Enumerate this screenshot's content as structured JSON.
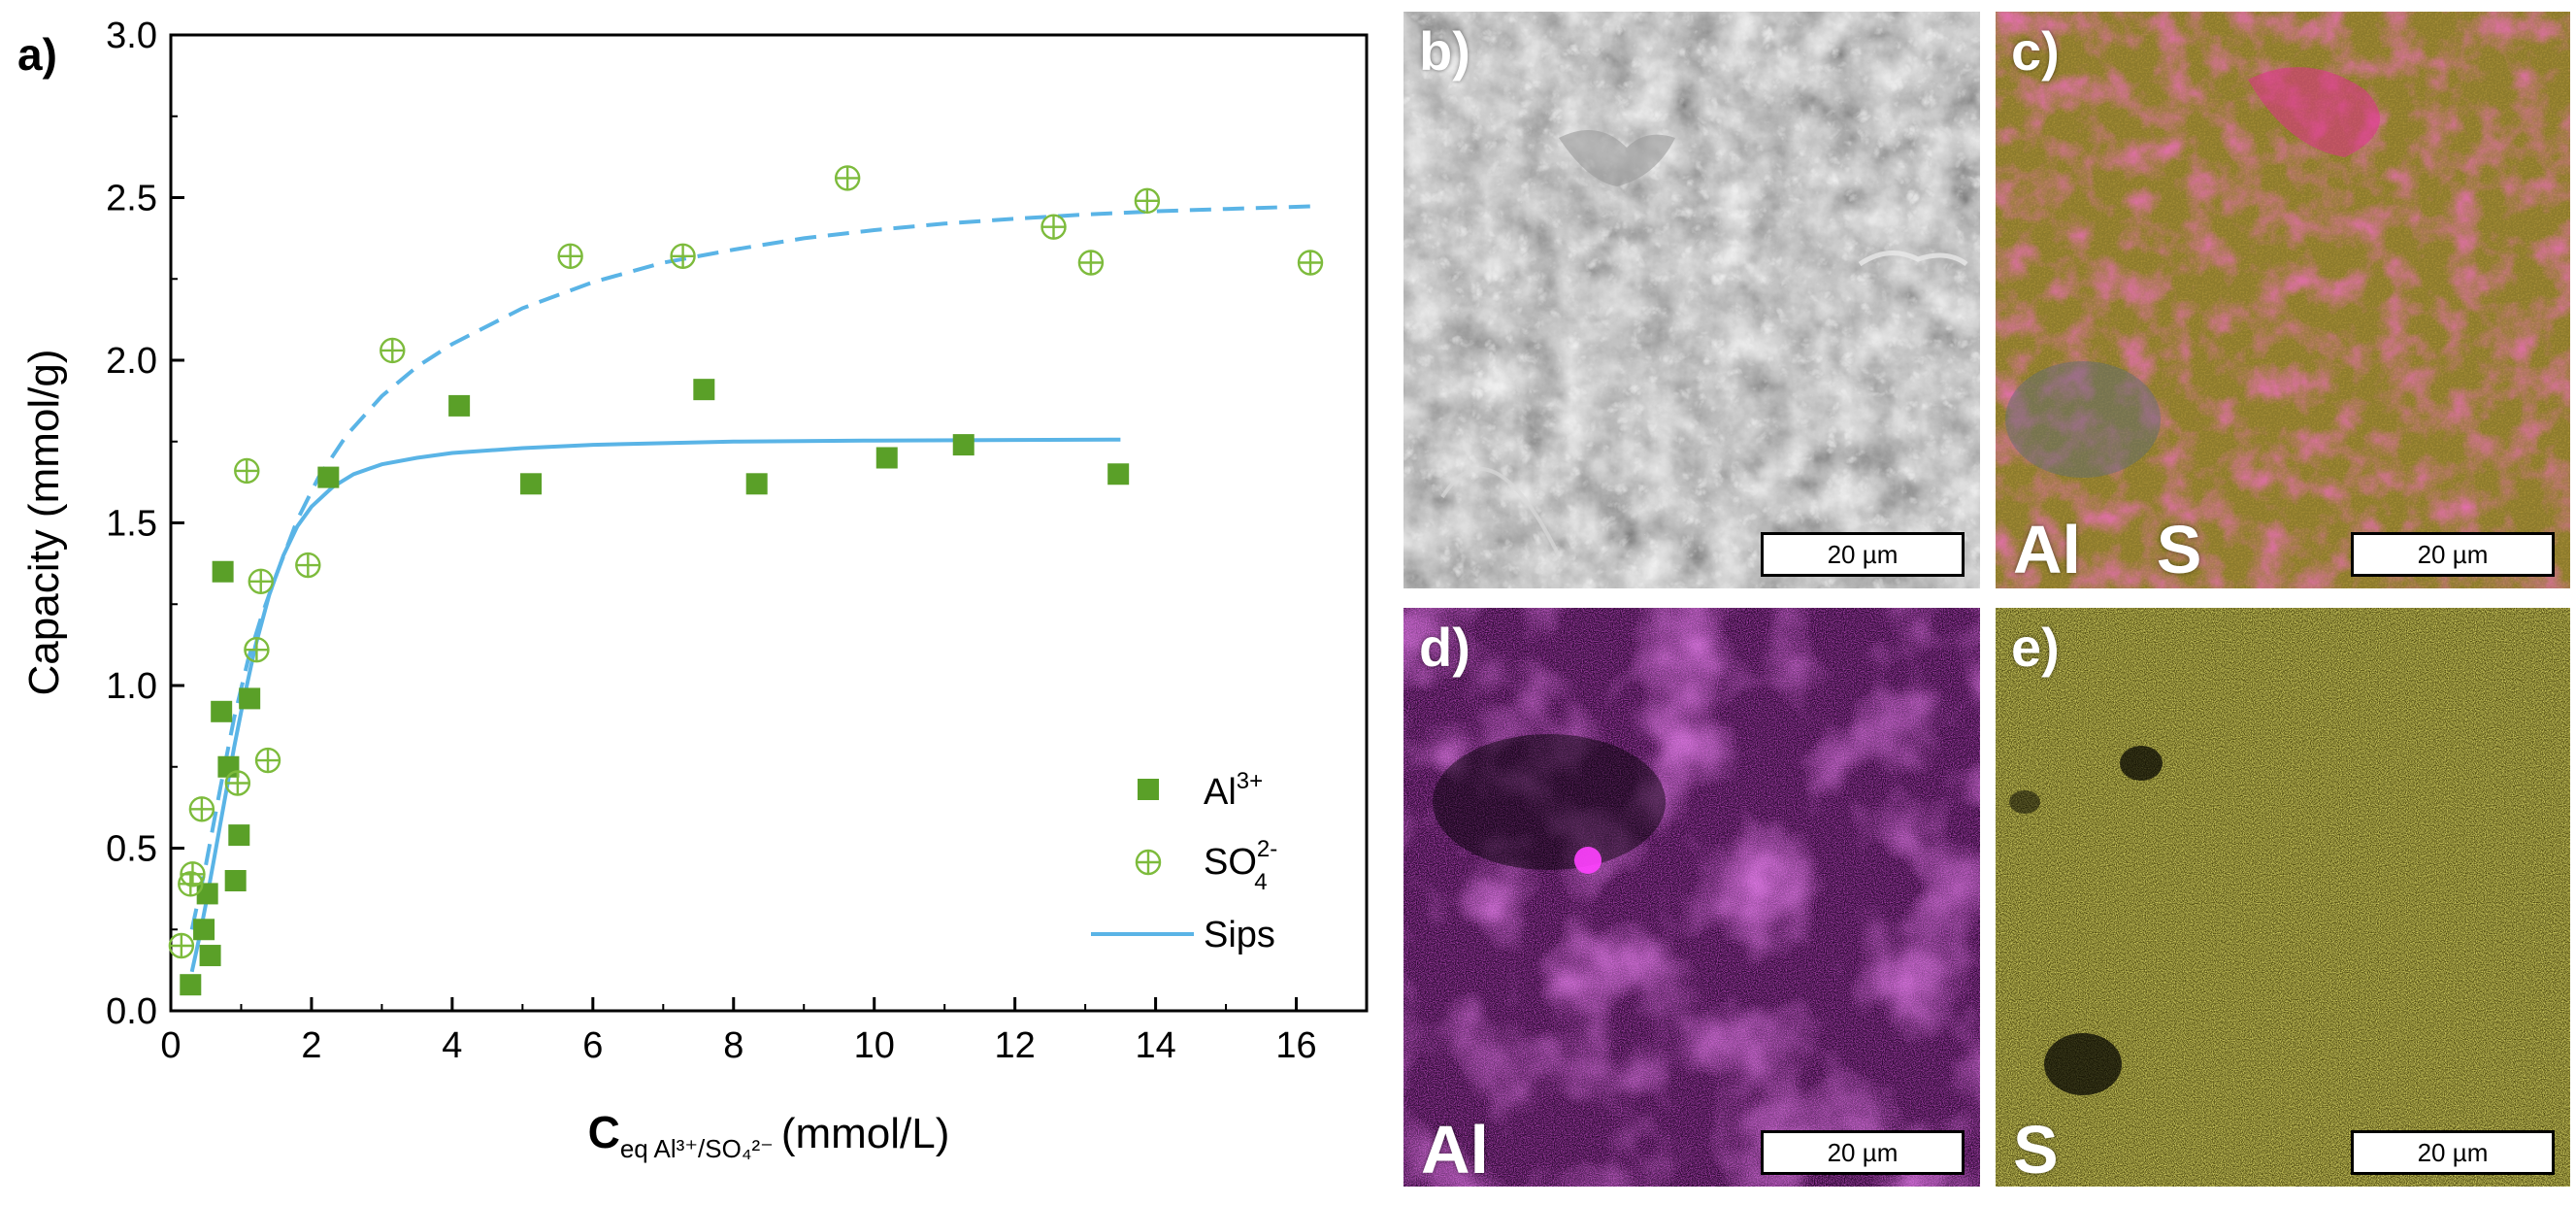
{
  "chart_data": {
    "type": "scatter",
    "panel_label": "a)",
    "xlabel_main": "C",
    "xlabel_sub": "eq Al³⁺/SO₄²⁻",
    "xlabel_unit": "(mmol/L)",
    "ylabel": "Capacity (mmol/g)",
    "xlim": [
      0,
      17
    ],
    "ylim": [
      0,
      3.0
    ],
    "xticks": [
      0,
      2,
      4,
      6,
      8,
      10,
      12,
      14,
      16
    ],
    "yticks": [
      0.0,
      0.5,
      1.0,
      1.5,
      2.0,
      2.5,
      3.0
    ],
    "ytick_labels": [
      "0.0",
      "0.5",
      "1.0",
      "1.5",
      "2.0",
      "2.5",
      "3.0"
    ],
    "legend_position": "bottom-right",
    "series": [
      {
        "name": "Al3+",
        "legend_base": "Al",
        "legend_sup": "3+",
        "marker": "filled-square",
        "color": "#5aa028",
        "x": [
          0.28,
          0.47,
          0.52,
          0.56,
          0.72,
          0.74,
          0.82,
          0.92,
          0.97,
          1.12,
          2.24,
          4.1,
          5.12,
          7.58,
          8.33,
          10.18,
          11.27,
          13.47
        ],
        "y": [
          0.08,
          0.25,
          0.36,
          0.17,
          0.92,
          1.35,
          0.75,
          0.4,
          0.54,
          0.96,
          1.64,
          1.86,
          1.62,
          1.91,
          1.62,
          1.7,
          1.74,
          1.65
        ]
      },
      {
        "name": "SO42-",
        "legend_base": "SO",
        "legend_sup": "2-",
        "legend_sub": "4",
        "marker": "open-circle-cross",
        "color": "#7dbb3c",
        "x": [
          0.15,
          0.28,
          0.31,
          0.44,
          0.95,
          1.08,
          1.22,
          1.28,
          1.38,
          1.95,
          3.15,
          5.68,
          7.28,
          9.62,
          12.55,
          13.08,
          13.88,
          16.2
        ],
        "y": [
          0.2,
          0.39,
          0.42,
          0.62,
          0.7,
          1.66,
          1.11,
          1.32,
          0.77,
          1.37,
          2.03,
          2.32,
          2.32,
          2.56,
          2.41,
          2.3,
          2.49,
          2.3
        ]
      }
    ],
    "fits": [
      {
        "name": "Sips",
        "for": "Al3+",
        "style": "solid",
        "color": "#5ab4e6",
        "x": [
          0.3,
          0.4,
          0.5,
          0.6,
          0.7,
          0.8,
          0.9,
          1.0,
          1.2,
          1.4,
          1.6,
          1.8,
          2.0,
          2.3,
          2.6,
          3.0,
          3.5,
          4.0,
          5.0,
          6.0,
          8.0,
          10.0,
          12.0,
          13.5
        ],
        "y": [
          0.12,
          0.22,
          0.33,
          0.45,
          0.57,
          0.69,
          0.81,
          0.92,
          1.12,
          1.28,
          1.4,
          1.49,
          1.55,
          1.61,
          1.65,
          1.68,
          1.7,
          1.715,
          1.73,
          1.74,
          1.75,
          1.753,
          1.755,
          1.756
        ]
      },
      {
        "name": "Sips",
        "for": "SO42-",
        "style": "dashed",
        "color": "#5ab4e6",
        "x": [
          0.3,
          0.5,
          0.7,
          0.9,
          1.1,
          1.3,
          1.5,
          1.8,
          2.1,
          2.5,
          3.0,
          3.5,
          4.0,
          5.0,
          6.0,
          7.0,
          8.0,
          9.0,
          10.0,
          11.0,
          12.0,
          13.0,
          14.0,
          15.0,
          16.2
        ],
        "y": [
          0.25,
          0.45,
          0.68,
          0.9,
          1.08,
          1.22,
          1.34,
          1.51,
          1.64,
          1.77,
          1.89,
          1.98,
          2.05,
          2.16,
          2.24,
          2.3,
          2.34,
          2.375,
          2.4,
          2.42,
          2.435,
          2.448,
          2.458,
          2.465,
          2.473
        ]
      }
    ],
    "legend": [
      {
        "label_base": "Al",
        "label_sup": "3+",
        "label_sub": ""
      },
      {
        "label_base": "SO",
        "label_sup": "2-",
        "label_sub": "4"
      },
      {
        "label_base": "Sips",
        "label_sup": "",
        "label_sub": ""
      }
    ]
  },
  "images": [
    {
      "label": "b)",
      "kind": "sem",
      "element_label": "",
      "scale_bar": "20 µm"
    },
    {
      "label": "c)",
      "kind": "overlay",
      "element_label": "Al    S",
      "scale_bar": "20 µm"
    },
    {
      "label": "d)",
      "kind": "aluminum-map",
      "element_label": "Al",
      "scale_bar": "20 µm"
    },
    {
      "label": "e)",
      "kind": "sulfur-map",
      "element_label": "S",
      "scale_bar": "20 µm"
    }
  ],
  "colors": {
    "al_marker": "#5aa028",
    "so4_marker": "#7dbb3c",
    "fit_line": "#5ab4e6",
    "al_map": "#d020d8",
    "s_map": "#e6e040"
  }
}
